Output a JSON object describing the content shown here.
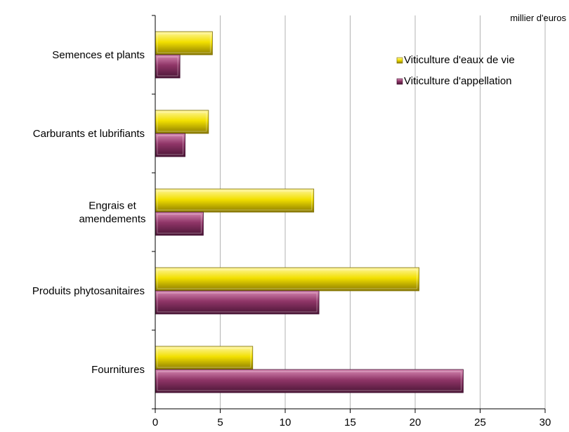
{
  "chart_data": {
    "type": "bar",
    "orientation": "horizontal",
    "unit_label": "millier d'euros",
    "categories": [
      [
        "Semences et plants"
      ],
      [
        "Carburants et lubrifiants"
      ],
      [
        "Engrais et",
        "amendements"
      ],
      [
        "Produits phytosanitaires"
      ],
      [
        "Fournitures"
      ]
    ],
    "series": [
      {
        "name": "Viticulture d'eaux de vie",
        "color": "#f2e000",
        "values": [
          4.4,
          4.1,
          12.2,
          20.3,
          7.5
        ]
      },
      {
        "name": "Viticulture d'appellation",
        "color": "#8f3567",
        "values": [
          1.9,
          2.3,
          3.7,
          12.6,
          23.7
        ]
      }
    ],
    "xlim": [
      0,
      30
    ],
    "xticks": [
      "0",
      "5",
      "10",
      "15",
      "20",
      "25",
      "30"
    ],
    "grid": true,
    "legend_position": "top-right"
  }
}
